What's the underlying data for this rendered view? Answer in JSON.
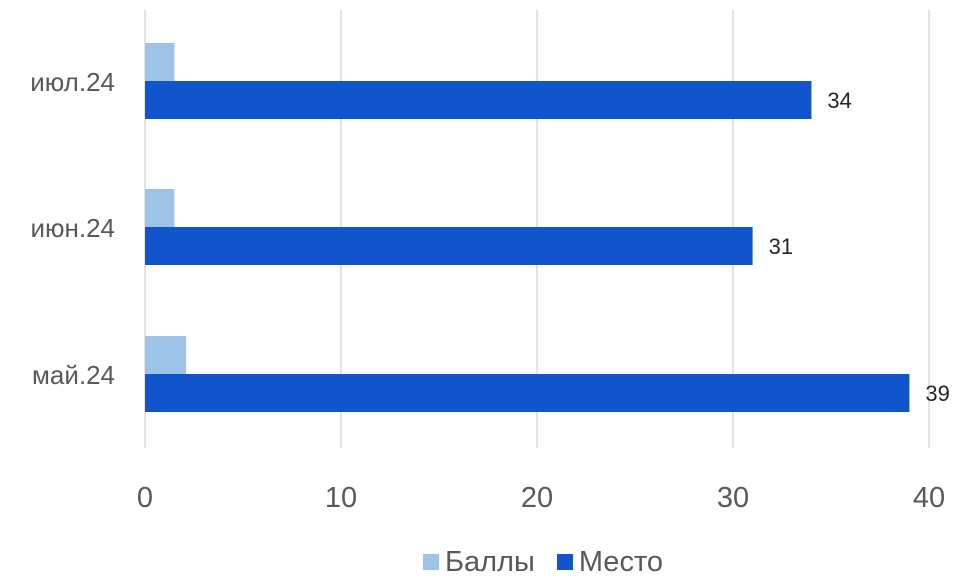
{
  "chart_data": {
    "type": "bar",
    "orientation": "horizontal",
    "categories": [
      "июл.24",
      "июн.24",
      "май.24"
    ],
    "series": [
      {
        "name": "Баллы",
        "values": [
          1.5,
          1.5,
          2.1
        ],
        "color": "#9DC3E6"
      },
      {
        "name": "Место",
        "values": [
          34,
          31,
          39
        ],
        "color": "#1155CC"
      }
    ],
    "data_labels": {
      "Место": [
        "34",
        "31",
        "39"
      ]
    },
    "xlim": [
      0,
      40
    ],
    "xticks": [
      "0",
      "10",
      "20",
      "30",
      "40"
    ],
    "grid": true,
    "legend_position": "bottom"
  }
}
